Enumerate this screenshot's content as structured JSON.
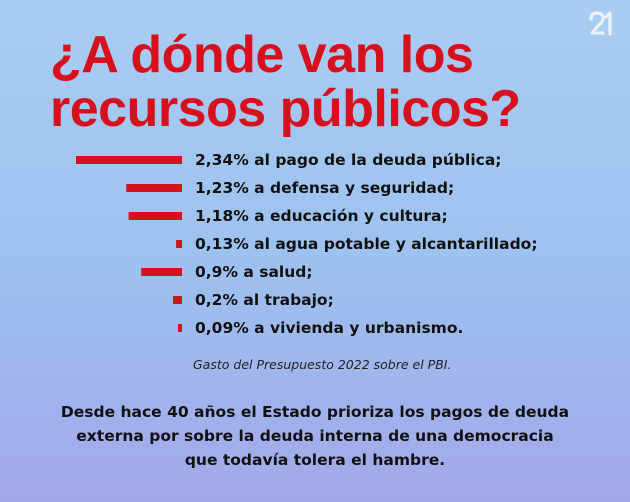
{
  "title": "¿A dónde van los recursos públicos?",
  "brand_color": "#d7101e",
  "logo_icon": "21-monogram-logo",
  "chart_data": {
    "type": "bar",
    "orientation": "horizontal",
    "unit": "% del PBI",
    "categories": [
      "al pago de la deuda pública;",
      "a defensa y seguridad;",
      "a educación y cultura;",
      "al agua potable y alcantarillado;",
      "a salud;",
      "al trabajo;",
      "a vivienda y urbanismo."
    ],
    "values": [
      2.34,
      1.23,
      1.18,
      0.13,
      0.9,
      0.2,
      0.09
    ],
    "labels": [
      "2,34% al pago de la deuda pública;",
      "1,23% a defensa y seguridad;",
      "1,18% a educación y cultura;",
      "0,13% al agua potable y alcantarillado;",
      "0,9% a salud;",
      "0,2% al trabajo;",
      "0,09% a vivienda y urbanismo."
    ],
    "bar_color": "#d7101e",
    "grid": false
  },
  "source": "Gasto del Presupuesto 2022 sobre el PBI.",
  "footer": "Desde hace 40 años el Estado prioriza los pagos de deuda externa por sobre la deuda interna de una democracia que todavía tolera el hambre."
}
